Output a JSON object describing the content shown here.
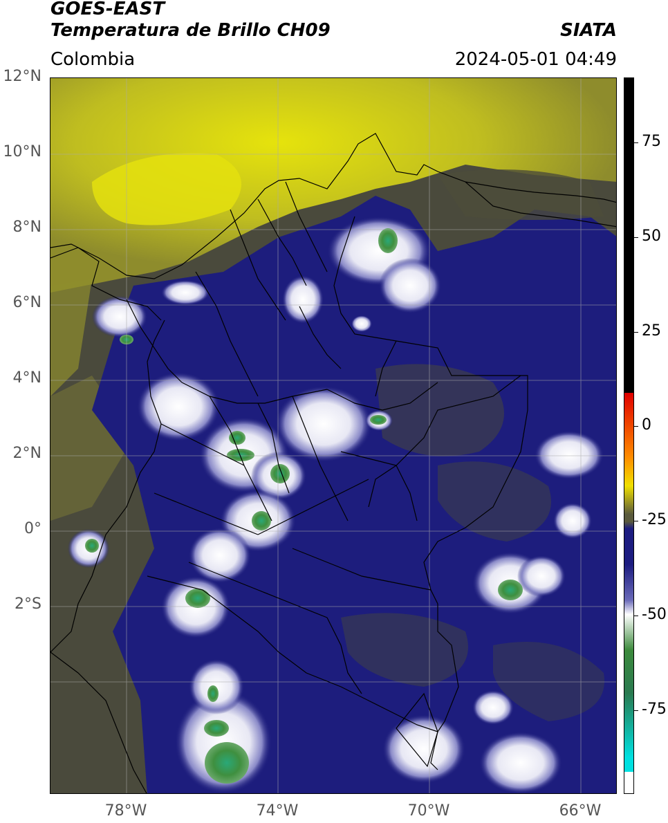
{
  "header": {
    "title_line1": "GOES-EAST",
    "title_line2": "Temperatura de Brillo CH09",
    "organization": "SIATA",
    "region": "Colombia",
    "timestamp": "2024-05-01 04:49"
  },
  "axes": {
    "y_labels": [
      "12°N",
      "10°N",
      "8°N",
      "6°N",
      "4°N",
      "2°N",
      "0°",
      "2°S"
    ],
    "x_labels": [
      "78°W",
      "74°W",
      "70°W",
      "66°W"
    ]
  },
  "colorbar": {
    "labels": [
      "75",
      "50",
      "25",
      "0",
      "-25",
      "-50",
      "-75"
    ],
    "palette": {
      "warm_black": "#000000",
      "red": "#e00000",
      "orange": "#ff8c00",
      "yellow": "#f0e000",
      "olive": "#5a5a3c",
      "navy": "#1c1c80",
      "white": "#ffffff",
      "green": "#3c8a3c",
      "cyan": "#00e0e0"
    }
  },
  "colors": {
    "cloud_free_warm": "#b7b524",
    "yellow_haze": "#dada10",
    "land_olive": "#4b4b3d",
    "cold_navy": "#1d1d7d",
    "deep_convection_white": "#f2f2f8",
    "overshooting_green": "#3f8f3f"
  }
}
